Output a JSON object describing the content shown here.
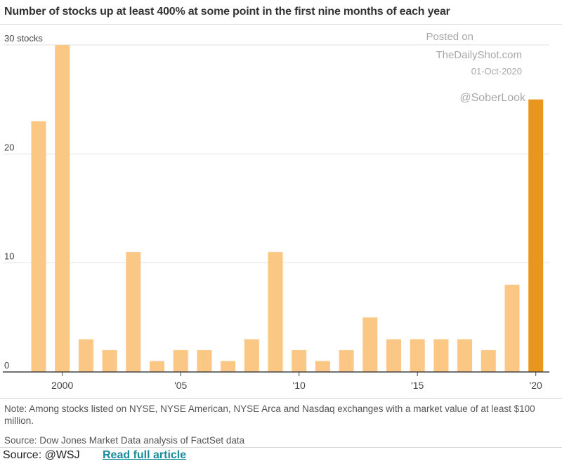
{
  "title": "Number of stocks up at least 400% at some point in the first nine months of each year",
  "watermark": {
    "posted_on": "Posted on",
    "site": "TheDailyShot.com",
    "date": "01-Oct-2020",
    "handle": "@SoberLook"
  },
  "note": "Note: Among stocks listed on NYSE, NYSE American, NYSE Arca and Nasdaq exchanges with a market value of at least $100 million.",
  "source": "Source: Dow Jones Market Data analysis of FactSet data",
  "footer": {
    "credit": "Source: @WSJ",
    "link_label": "Read full article"
  },
  "chart_data": {
    "type": "bar",
    "categories": [
      "1999",
      "2000",
      "2001",
      "2002",
      "2003",
      "2004",
      "2005",
      "2006",
      "2007",
      "2008",
      "2009",
      "2010",
      "2011",
      "2012",
      "2013",
      "2014",
      "2015",
      "2016",
      "2017",
      "2018",
      "2019",
      "2020"
    ],
    "values": [
      23,
      30,
      3,
      2,
      11,
      1,
      2,
      2,
      1,
      3,
      11,
      2,
      1,
      2,
      5,
      3,
      3,
      3,
      3,
      2,
      8,
      25
    ],
    "highlight_index": 21,
    "xtick_labels": [
      "2000",
      "'05",
      "'10",
      "'15",
      "'20"
    ],
    "xtick_categories": [
      "2000",
      "2005",
      "2010",
      "2015",
      "2020"
    ],
    "ytick_labels": [
      "0",
      "10",
      "20",
      "30 stocks"
    ],
    "ytick_values": [
      0,
      10,
      20,
      30
    ],
    "ylim": [
      0,
      30
    ],
    "grid": true,
    "colors": {
      "bar": "#fbc785",
      "highlight": "#e8961e",
      "grid": "#e2e2e2",
      "axis": "#444444"
    }
  }
}
